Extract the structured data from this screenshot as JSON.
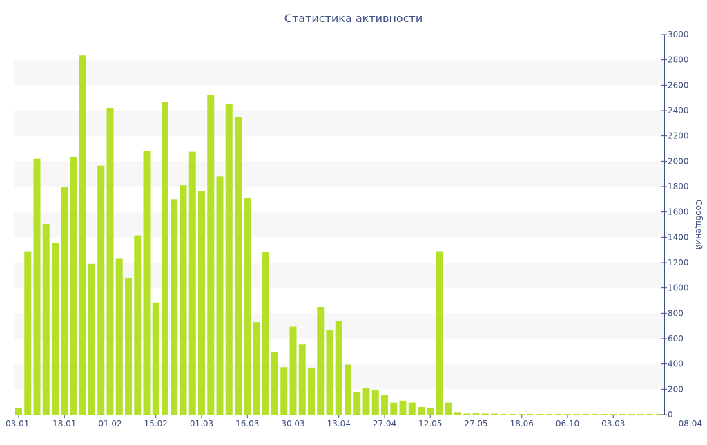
{
  "chart_data": {
    "type": "bar",
    "title": "Статистика активности",
    "ylabel": "Сообщений",
    "xlabel": "",
    "ylim": [
      0,
      3000
    ],
    "yticks": [
      0,
      200,
      400,
      600,
      800,
      1000,
      1200,
      1400,
      1600,
      1800,
      2000,
      2200,
      2400,
      2600,
      2800,
      3000
    ],
    "y_axis_position": "right",
    "grid": "alternating horizontal bands",
    "bar_color": "#b5e02a",
    "text_color": "#3e4f80",
    "band_color": "#f7f7f7",
    "xtick_labels": [
      "03.01",
      "18.01",
      "01.02",
      "15.02",
      "01.03",
      "16.03",
      "30.03",
      "13.04",
      "27.04",
      "12.05",
      "27.05",
      "18.06",
      "06.10",
      "03.03",
      "08.04"
    ],
    "values": [
      50,
      1290,
      2020,
      1505,
      1355,
      1795,
      2035,
      2835,
      1190,
      1965,
      2420,
      1230,
      1075,
      1415,
      2080,
      885,
      2470,
      1700,
      1810,
      2075,
      1765,
      2525,
      1880,
      2455,
      2350,
      1710,
      730,
      1285,
      495,
      375,
      695,
      555,
      365,
      850,
      670,
      740,
      395,
      180,
      210,
      195,
      155,
      95,
      110,
      95,
      60,
      55,
      1290,
      95,
      20,
      8,
      10,
      8,
      8,
      5,
      5,
      5,
      5,
      5,
      5,
      5,
      5,
      5,
      5,
      5,
      5,
      5,
      5,
      5,
      5,
      5,
      5
    ]
  }
}
